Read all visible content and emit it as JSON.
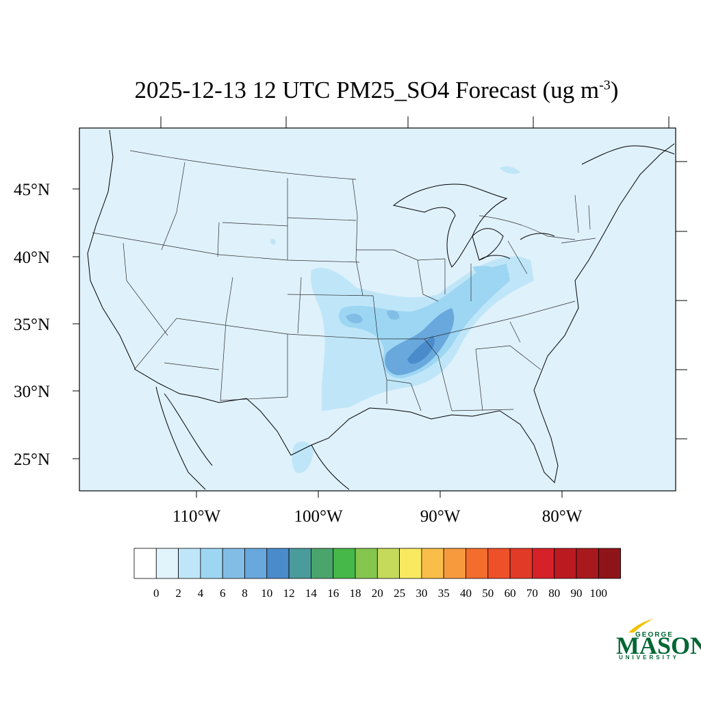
{
  "title": {
    "main": "2025-12-13 12 UTC PM25_SO4 Forecast (ug m",
    "superscript": "-3",
    "suffix": ")"
  },
  "map": {
    "lat_labels": [
      "45°N",
      "40°N",
      "35°N",
      "30°N",
      "25°N"
    ],
    "lon_labels": [
      "110°W",
      "100°W",
      "90°W",
      "80°W"
    ],
    "background_color": "#dff1fb"
  },
  "colorbar": {
    "labels": [
      "0",
      "2",
      "4",
      "6",
      "8",
      "10",
      "12",
      "14",
      "16",
      "18",
      "20",
      "25",
      "30",
      "35",
      "40",
      "50",
      "60",
      "70",
      "80",
      "90",
      "100"
    ],
    "colors": [
      "#ffffff",
      "#e1f3fb",
      "#bfe6f8",
      "#9dd6f3",
      "#82bde6",
      "#68a8dc",
      "#4a8bcb",
      "#4a9b9b",
      "#49a56c",
      "#46b849",
      "#85c64e",
      "#c5d95b",
      "#f8e961",
      "#f9bd4a",
      "#f79a3d",
      "#f36d2d",
      "#ee5129",
      "#e13a26",
      "#d62128",
      "#bc1a21",
      "#a8191e",
      "#8f1419"
    ]
  },
  "logo": {
    "line1": "GEORGE",
    "line2": "MASON",
    "line3": "UNIVERSITY",
    "color": "#006633",
    "accent": "#f2c200"
  }
}
